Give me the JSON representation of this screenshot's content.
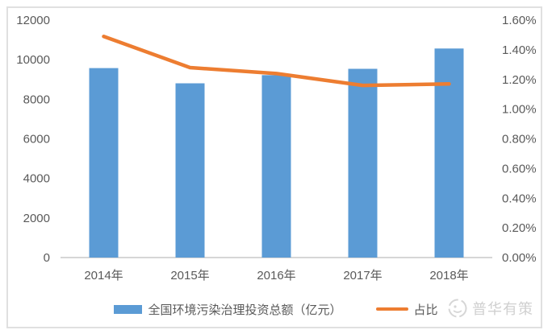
{
  "chart_data": {
    "type": "bar",
    "subtype": "bar-line-combo",
    "categories": [
      "2014年",
      "2015年",
      "2016年",
      "2017年",
      "2018年"
    ],
    "series": [
      {
        "name": "全国环境污染治理投资总额（亿元）",
        "type": "bar",
        "axis": "left",
        "color": "#5B9BD5",
        "values": [
          9575.5,
          8806.3,
          9219.8,
          9539.0,
          10565.0
        ]
      },
      {
        "name": "占比",
        "type": "line",
        "axis": "right",
        "color": "#ED7D31",
        "values": [
          1.49,
          1.28,
          1.24,
          1.16,
          1.17
        ]
      }
    ],
    "title": "",
    "xlabel": "",
    "ylabel": "",
    "left_axis": {
      "min": 0,
      "max": 12000,
      "step": 2000,
      "tick_labels": [
        "0",
        "2000",
        "4000",
        "6000",
        "8000",
        "10000",
        "12000"
      ]
    },
    "right_axis": {
      "min": 0,
      "max": 1.6,
      "step": 0.2,
      "tick_labels": [
        "0.00%",
        "0.20%",
        "0.40%",
        "0.60%",
        "0.80%",
        "1.00%",
        "1.20%",
        "1.40%",
        "1.60%"
      ]
    },
    "grid": false,
    "legend_position": "bottom"
  },
  "legend": {
    "bar_label": "全国环境污染治理投资总额（亿元）",
    "line_label": "占比"
  },
  "watermark": {
    "text": "普华有策"
  },
  "colors": {
    "bar": "#5B9BD5",
    "line": "#ED7D31",
    "axis_text": "#595959",
    "axis_line": "#c9c9c9",
    "watermark": "#d0d0d0",
    "panel_border": "#e0e0e0"
  }
}
